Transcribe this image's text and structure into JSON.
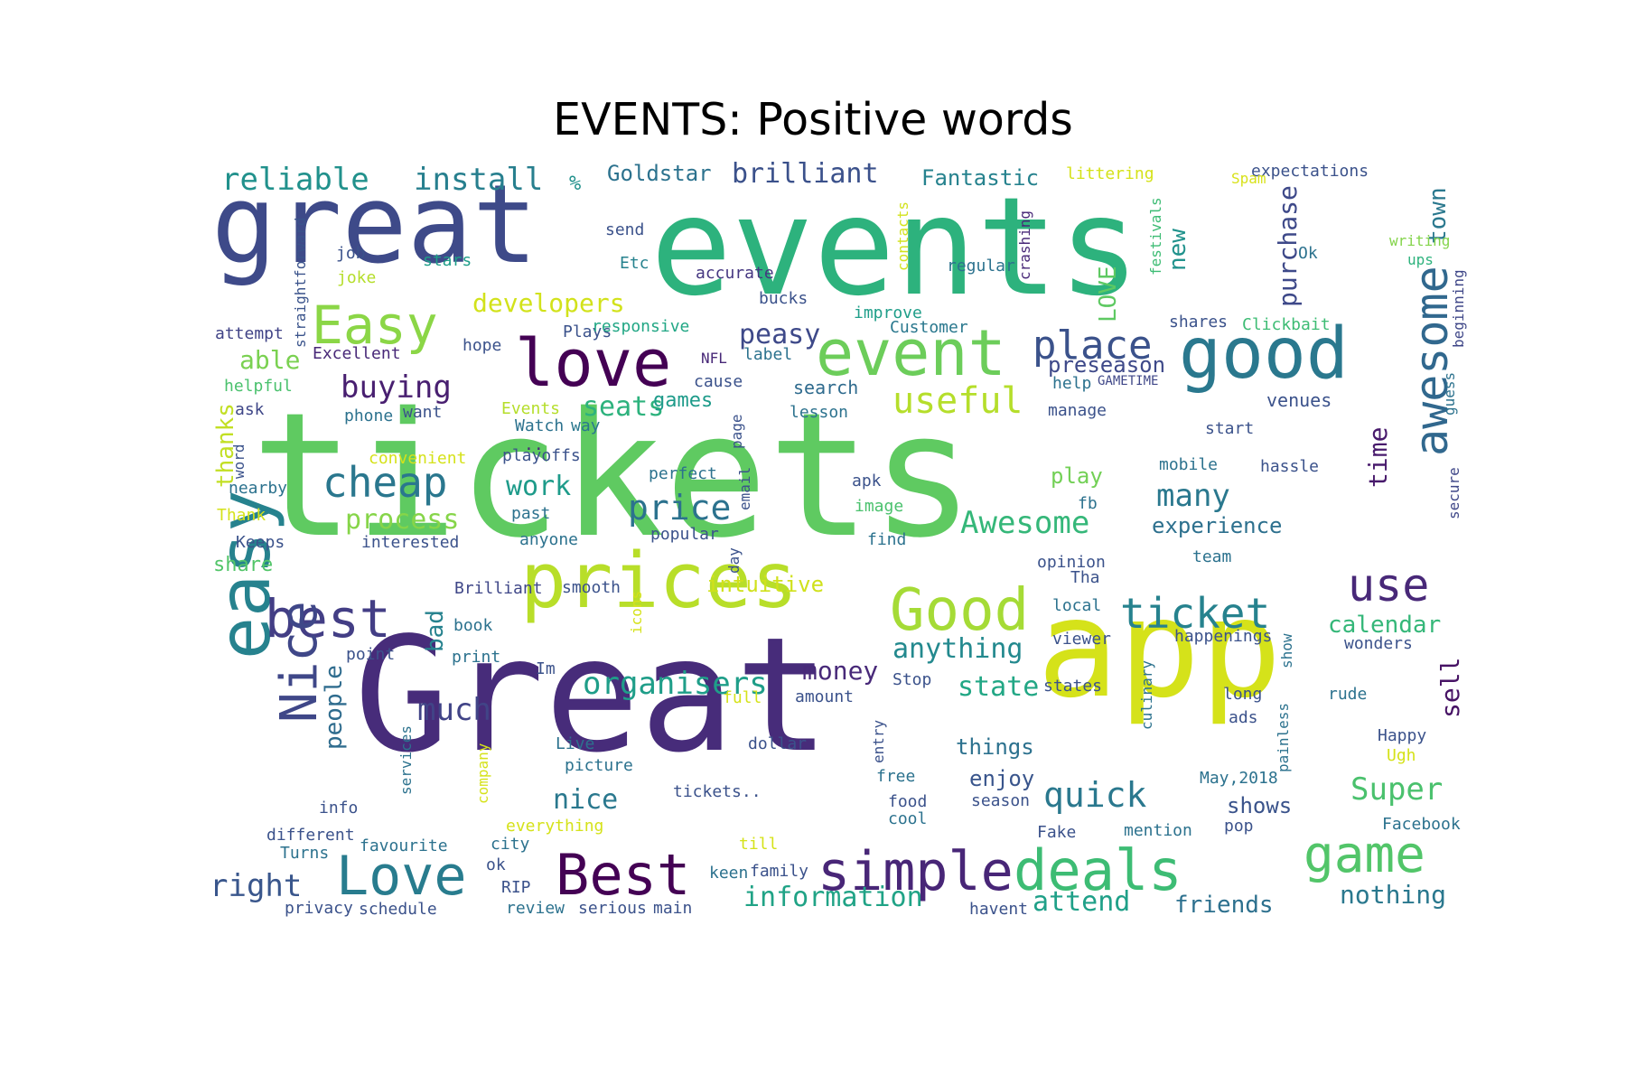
{
  "figure": {
    "title": "EVENTS: Positive words",
    "background": "#ffffff",
    "colormap": "viridis"
  },
  "words": [
    {
      "text": "tickets",
      "color": "#5fca61",
      "size": 190
    },
    {
      "text": "Great",
      "color": "#472c7a",
      "size": 175
    },
    {
      "text": "events",
      "color": "#2db27d",
      "size": 150
    },
    {
      "text": "app",
      "color": "#d5e21a",
      "size": 150
    },
    {
      "text": "great",
      "color": "#3e4a89",
      "size": 120
    },
    {
      "text": "prices",
      "color": "#b8de29",
      "size": 85
    },
    {
      "text": "good",
      "color": "#2a788e",
      "size": 78
    },
    {
      "text": "easy",
      "color": "#26828e",
      "size": 78
    },
    {
      "text": "love",
      "color": "#440154",
      "size": 72
    },
    {
      "text": "event",
      "color": "#6ccd5a",
      "size": 70
    },
    {
      "text": "Good",
      "color": "#a5db36",
      "size": 64
    },
    {
      "text": "Best",
      "color": "#440154",
      "size": 62
    },
    {
      "text": "deals",
      "color": "#3dbc74",
      "size": 62
    },
    {
      "text": "simple",
      "color": "#482677",
      "size": 60
    },
    {
      "text": "Love",
      "color": "#287c8e",
      "size": 60
    },
    {
      "text": "best",
      "color": "#433e85",
      "size": 58
    },
    {
      "text": "Easy",
      "color": "#8bd646",
      "size": 58
    },
    {
      "text": "Nice",
      "color": "#3f4788",
      "size": 56
    },
    {
      "text": "game",
      "color": "#52c569",
      "size": 56
    },
    {
      "text": "awesome",
      "color": "#31688e",
      "size": 50
    },
    {
      "text": "use",
      "color": "#482878",
      "size": 50
    },
    {
      "text": "cheap",
      "color": "#2a778e",
      "size": 46
    },
    {
      "text": "ticket",
      "color": "#26828e",
      "size": 46
    },
    {
      "text": "place",
      "color": "#3b528b",
      "size": 44
    },
    {
      "text": "useful",
      "color": "#b5de2b",
      "size": 40
    },
    {
      "text": "price",
      "color": "#2c728e",
      "size": 38
    },
    {
      "text": "quick",
      "color": "#2a788e",
      "size": 38
    },
    {
      "text": "organisers",
      "color": "#1f9e89",
      "size": 34
    },
    {
      "text": "buying",
      "color": "#481f70",
      "size": 34
    },
    {
      "text": "Awesome",
      "color": "#35b779",
      "size": 34
    },
    {
      "text": "much",
      "color": "#414487",
      "size": 34
    },
    {
      "text": "many",
      "color": "#2a788e",
      "size": 34
    },
    {
      "text": "Super",
      "color": "#4ac16d",
      "size": 34
    },
    {
      "text": "right",
      "color": "#39568c",
      "size": 34
    },
    {
      "text": "reliable",
      "color": "#21918c",
      "size": 34
    },
    {
      "text": "install",
      "color": "#277f8e",
      "size": 34
    },
    {
      "text": "brilliant",
      "color": "#3b518b",
      "size": 30
    },
    {
      "text": "seats",
      "color": "#2db27d",
      "size": 30
    },
    {
      "text": "nice",
      "color": "#2a788e",
      "size": 30
    },
    {
      "text": "information",
      "color": "#20a386",
      "size": 30
    },
    {
      "text": "anything",
      "color": "#23898e",
      "size": 30
    },
    {
      "text": "work",
      "color": "#1e9b8a",
      "size": 30
    },
    {
      "text": "attend",
      "color": "#1fa088",
      "size": 30
    },
    {
      "text": "peasy",
      "color": "#3e4989",
      "size": 30
    },
    {
      "text": "state",
      "color": "#22a785",
      "size": 30
    },
    {
      "text": "process",
      "color": "#86d549",
      "size": 30
    },
    {
      "text": "developers",
      "color": "#d2e21b",
      "size": 28
    },
    {
      "text": "money",
      "color": "#482979",
      "size": 28
    },
    {
      "text": "nothing",
      "color": "#2a788e",
      "size": 28
    },
    {
      "text": "preseason",
      "color": "#3e4989",
      "size": 24
    },
    {
      "text": "able",
      "color": "#7ad151",
      "size": 28
    },
    {
      "text": "time",
      "color": "#481a6c",
      "size": 28
    },
    {
      "text": "sell",
      "color": "#471365",
      "size": 28
    },
    {
      "text": "things",
      "color": "#2c718e",
      "size": 24
    },
    {
      "text": "enjoy",
      "color": "#39558c",
      "size": 24
    },
    {
      "text": "purchase",
      "color": "#3e4989",
      "size": 28
    },
    {
      "text": "town",
      "color": "#2a788e",
      "size": 26
    },
    {
      "text": "new",
      "color": "#20928c",
      "size": 26
    },
    {
      "text": "LOVE",
      "color": "#5ec962",
      "size": 26
    },
    {
      "text": "calendar",
      "color": "#35b779",
      "size": 26
    },
    {
      "text": "friends",
      "color": "#2d708e",
      "size": 26
    },
    {
      "text": "people",
      "color": "#2f6c8e",
      "size": 26
    },
    {
      "text": "bad",
      "color": "#26828e",
      "size": 26
    },
    {
      "text": "thanks",
      "color": "#c2df23",
      "size": 26
    },
    {
      "text": "Fantastic",
      "color": "#26828e",
      "size": 24
    },
    {
      "text": "Goldstar",
      "color": "#2c728e",
      "size": 24
    },
    {
      "text": "experience",
      "color": "#2d708e",
      "size": 24
    },
    {
      "text": "shows",
      "color": "#3a538b",
      "size": 24
    },
    {
      "text": "intuitive",
      "color": "#d0e11c",
      "size": 24
    },
    {
      "text": "share",
      "color": "#52c569",
      "size": 22
    },
    {
      "text": "play",
      "color": "#73d056",
      "size": 24
    },
    {
      "text": "games",
      "color": "#1e9b8a",
      "size": 22
    },
    {
      "text": "venues",
      "color": "#3b528b",
      "size": 20
    },
    {
      "text": "search",
      "color": "#2f6b8e",
      "size": 20
    },
    {
      "text": "%",
      "color": "#21918c",
      "size": 22
    },
    {
      "text": "straightforward",
      "color": "#3a538b",
      "size": 16
    },
    {
      "text": "crashing",
      "color": "#482878",
      "size": 16
    },
    {
      "text": "festivals",
      "color": "#3dbc74",
      "size": 16
    },
    {
      "text": "littering",
      "color": "#d5e21a",
      "size": 18
    },
    {
      "text": "expectations",
      "color": "#3b528b",
      "size": 18
    },
    {
      "text": "Spam",
      "color": "#d8e219",
      "size": 16
    },
    {
      "text": "writing",
      "color": "#84d44b",
      "size": 16
    },
    {
      "text": "ups",
      "color": "#2db27d",
      "size": 16
    },
    {
      "text": "beginning",
      "color": "#3f4788",
      "size": 16
    },
    {
      "text": "send",
      "color": "#3b528b",
      "size": 18
    },
    {
      "text": "Etc",
      "color": "#26828e",
      "size": 18
    },
    {
      "text": "accurate",
      "color": "#453781",
      "size": 18
    },
    {
      "text": "regular",
      "color": "#2c728e",
      "size": 18
    },
    {
      "text": "contacts",
      "color": "#d2e21b",
      "size": 16
    },
    {
      "text": "Ok",
      "color": "#2c728e",
      "size": 18
    },
    {
      "text": "job",
      "color": "#3b528b",
      "size": 18
    },
    {
      "text": "stars",
      "color": "#1f9e89",
      "size": 18
    },
    {
      "text": "joke",
      "color": "#b5de2b",
      "size": 18
    },
    {
      "text": "bucks",
      "color": "#3b528b",
      "size": 18
    },
    {
      "text": "improve",
      "color": "#1f9e89",
      "size": 18
    },
    {
      "text": "Customer",
      "color": "#2a788e",
      "size": 18
    },
    {
      "text": "shares",
      "color": "#3b528b",
      "size": 18
    },
    {
      "text": "Clickbait",
      "color": "#3dbc74",
      "size": 18
    },
    {
      "text": "attempt",
      "color": "#414487",
      "size": 18
    },
    {
      "text": "Plays",
      "color": "#3b528b",
      "size": 18
    },
    {
      "text": "responsive",
      "color": "#22a785",
      "size": 18
    },
    {
      "text": "hope",
      "color": "#3b528b",
      "size": 18
    },
    {
      "text": "Excellent",
      "color": "#482878",
      "size": 18
    },
    {
      "text": "NFL",
      "color": "#482878",
      "size": 16
    },
    {
      "text": "label",
      "color": "#2c728e",
      "size": 18
    },
    {
      "text": "cause",
      "color": "#3b528b",
      "size": 18
    },
    {
      "text": "help",
      "color": "#2c728e",
      "size": 18
    },
    {
      "text": "GAMETIME",
      "color": "#3f4788",
      "size": 14
    },
    {
      "text": "helpful",
      "color": "#4ac16d",
      "size": 18
    },
    {
      "text": "ask",
      "color": "#3f4788",
      "size": 18
    },
    {
      "text": "phone",
      "color": "#2c728e",
      "size": 18
    },
    {
      "text": "want",
      "color": "#3b528b",
      "size": 18
    },
    {
      "text": "Events",
      "color": "#b5de2b",
      "size": 18
    },
    {
      "text": "Watch",
      "color": "#2c728e",
      "size": 18
    },
    {
      "text": "way",
      "color": "#2a788e",
      "size": 18
    },
    {
      "text": "lesson",
      "color": "#2c728e",
      "size": 18
    },
    {
      "text": "manage",
      "color": "#3b528b",
      "size": 18
    },
    {
      "text": "start",
      "color": "#3b528b",
      "size": 18
    },
    {
      "text": "guess",
      "color": "#2c728e",
      "size": 16
    },
    {
      "text": "secure",
      "color": "#3f4788",
      "size": 16
    },
    {
      "text": "word",
      "color": "#3b528b",
      "size": 16
    },
    {
      "text": "convenient",
      "color": "#d5e21a",
      "size": 18
    },
    {
      "text": "playoffs",
      "color": "#3b528b",
      "size": 18
    },
    {
      "text": "page",
      "color": "#3b528b",
      "size": 16
    },
    {
      "text": "..",
      "color": "#482878",
      "size": 18
    },
    {
      "text": "perfect",
      "color": "#2c728e",
      "size": 18
    },
    {
      "text": "email",
      "color": "#3b528b",
      "size": 16
    },
    {
      "text": "apk",
      "color": "#3b528b",
      "size": 18
    },
    {
      "text": "mobile",
      "color": "#2c728e",
      "size": 18
    },
    {
      "text": "hassle",
      "color": "#3b528b",
      "size": 18
    },
    {
      "text": "nearby",
      "color": "#2c728e",
      "size": 18
    },
    {
      "text": "Thank",
      "color": "#d5e21a",
      "size": 18
    },
    {
      "text": "past",
      "color": "#2c728e",
      "size": 18
    },
    {
      "text": "image",
      "color": "#4ac16d",
      "size": 18
    },
    {
      "text": "fb",
      "color": "#2c728e",
      "size": 18
    },
    {
      "text": "interested",
      "color": "#3b528b",
      "size": 18
    },
    {
      "text": "anyone",
      "color": "#2c728e",
      "size": 18
    },
    {
      "text": "popular",
      "color": "#3b528b",
      "size": 18
    },
    {
      "text": "find",
      "color": "#2c728e",
      "size": 18
    },
    {
      "text": "opinion",
      "color": "#3b528b",
      "size": 18
    },
    {
      "text": "team",
      "color": "#2c728e",
      "size": 18
    },
    {
      "text": "Keeps",
      "color": "#3b528b",
      "size": 18
    },
    {
      "text": "day",
      "color": "#3b528b",
      "size": 16
    },
    {
      "text": "Tha",
      "color": "#3b528b",
      "size": 18
    },
    {
      "text": "Brilliant",
      "color": "#3f4788",
      "size": 18
    },
    {
      "text": "smooth",
      "color": "#3b528b",
      "size": 18
    },
    {
      "text": "icons",
      "color": "#d5e21a",
      "size": 16
    },
    {
      "text": "local",
      "color": "#2c728e",
      "size": 18
    },
    {
      "text": "book",
      "color": "#2c728e",
      "size": 18
    },
    {
      "text": "viewer",
      "color": "#3b528b",
      "size": 18
    },
    {
      "text": "happenings",
      "color": "#3b528b",
      "size": 18
    },
    {
      "text": "show",
      "color": "#2c728e",
      "size": 16
    },
    {
      "text": "wonders",
      "color": "#3b528b",
      "size": 18
    },
    {
      "text": "point",
      "color": "#3b528b",
      "size": 18
    },
    {
      "text": "print",
      "color": "#2c728e",
      "size": 18
    },
    {
      "text": "Im",
      "color": "#3b528b",
      "size": 18
    },
    {
      "text": "Stop",
      "color": "#3b528b",
      "size": 18
    },
    {
      "text": "states",
      "color": "#3b528b",
      "size": 18
    },
    {
      "text": "long",
      "color": "#3b528b",
      "size": 18
    },
    {
      "text": "rude",
      "color": "#2c728e",
      "size": 18
    },
    {
      "text": "full",
      "color": "#d5e21a",
      "size": 18
    },
    {
      "text": "amount",
      "color": "#3b528b",
      "size": 18
    },
    {
      "text": "culinary",
      "color": "#2c728e",
      "size": 16
    },
    {
      "text": "painless",
      "color": "#2c728e",
      "size": 16
    },
    {
      "text": "ads",
      "color": "#3b528b",
      "size": 18
    },
    {
      "text": "Live",
      "color": "#2c728e",
      "size": 18
    },
    {
      "text": "dollar",
      "color": "#3b528b",
      "size": 18
    },
    {
      "text": "entry",
      "color": "#3b528b",
      "size": 16
    },
    {
      "text": "company",
      "color": "#d5e21a",
      "size": 16
    },
    {
      "text": "Happy",
      "color": "#3b528b",
      "size": 18
    },
    {
      "text": "Ugh",
      "color": "#d5e21a",
      "size": 18
    },
    {
      "text": "services",
      "color": "#2c728e",
      "size": 16
    },
    {
      "text": "picture",
      "color": "#2c728e",
      "size": 18
    },
    {
      "text": "free",
      "color": "#2c728e",
      "size": 18
    },
    {
      "text": "tickets..",
      "color": "#3b528b",
      "size": 18
    },
    {
      "text": "food",
      "color": "#3b528b",
      "size": 18
    },
    {
      "text": "season",
      "color": "#3b528b",
      "size": 18
    },
    {
      "text": "May,2018",
      "color": "#2c728e",
      "size": 18
    },
    {
      "text": "info",
      "color": "#3b528b",
      "size": 18
    },
    {
      "text": "cool",
      "color": "#2c728e",
      "size": 18
    },
    {
      "text": "different",
      "color": "#3b528b",
      "size": 18
    },
    {
      "text": "everything",
      "color": "#d5e21a",
      "size": 18
    },
    {
      "text": "Fake",
      "color": "#3b528b",
      "size": 18
    },
    {
      "text": "mention",
      "color": "#2c728e",
      "size": 18
    },
    {
      "text": "pop",
      "color": "#3b528b",
      "size": 18
    },
    {
      "text": "Facebook",
      "color": "#2c728e",
      "size": 18
    },
    {
      "text": "favourite",
      "color": "#2c728e",
      "size": 18
    },
    {
      "text": "Turns",
      "color": "#2c728e",
      "size": 18
    },
    {
      "text": "city",
      "color": "#2c728e",
      "size": 18
    },
    {
      "text": "till",
      "color": "#d5e21a",
      "size": 18
    },
    {
      "text": "ok",
      "color": "#3b528b",
      "size": 18
    },
    {
      "text": "keen",
      "color": "#2c728e",
      "size": 18
    },
    {
      "text": "family",
      "color": "#3b528b",
      "size": 18
    },
    {
      "text": "RIP",
      "color": "#3b528b",
      "size": 18
    },
    {
      "text": "privacy",
      "color": "#3b528b",
      "size": 18
    },
    {
      "text": "schedule",
      "color": "#3b528b",
      "size": 18
    },
    {
      "text": "review",
      "color": "#2c728e",
      "size": 18
    },
    {
      "text": "serious",
      "color": "#3b528b",
      "size": 18
    },
    {
      "text": "main",
      "color": "#3b528b",
      "size": 18
    },
    {
      "text": "havent",
      "color": "#3b528b",
      "size": 18
    }
  ]
}
